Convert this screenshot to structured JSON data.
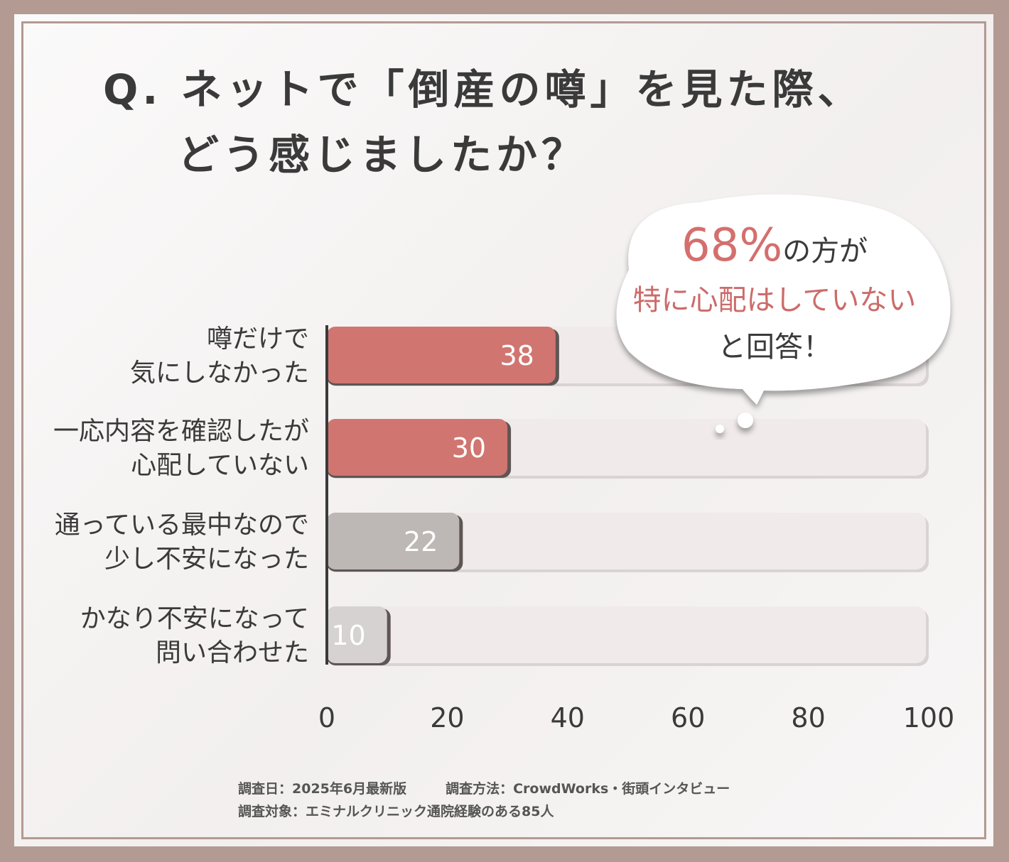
{
  "title": {
    "line1": "Q. ネットで「倒産の噂」を見た際、",
    "line2": "どう感じましたか？"
  },
  "callout": {
    "percent": "68%",
    "line1_suffix": "の方が",
    "line2": "特に心配はしていない",
    "line3": "と回答！"
  },
  "chart_data": {
    "type": "bar",
    "orientation": "horizontal",
    "categories": [
      [
        "噂だけで",
        "気にしなかった"
      ],
      [
        "一応内容を確認したが",
        "心配していない"
      ],
      [
        "通っている最中なので",
        "少し不安になった"
      ],
      [
        "かなり不安になって",
        "問い合わせた"
      ]
    ],
    "values": [
      38,
      30,
      22,
      10
    ],
    "value_labels": [
      "38",
      "30",
      "22",
      "10"
    ],
    "xlim": [
      0,
      100
    ],
    "xticks": [
      "0",
      "20",
      "40",
      "60",
      "80",
      "100"
    ],
    "colors": [
      "#d07570",
      "#d07570",
      "#bdb7b6",
      "#d6d2d1"
    ],
    "track_color": "#f0ebea",
    "legend": "none",
    "grid": false
  },
  "footer": {
    "date": "調査日：2025年6月最新版",
    "method": "調査方法：CrowdWorks・街頭インタビュー",
    "target": "調査対象：エミナルクリニック通院経験のある85人"
  }
}
